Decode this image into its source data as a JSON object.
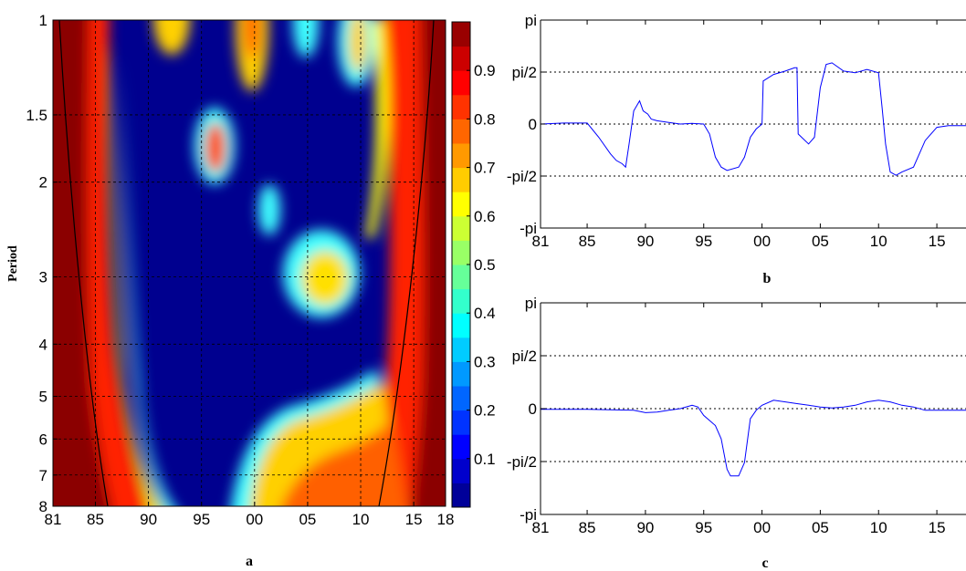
{
  "chart_data": [
    {
      "panel": "a",
      "type": "heatmap",
      "caption": "a",
      "ylabel": "Period",
      "x_ticks": [
        "81",
        "85",
        "90",
        "95",
        "00",
        "05",
        "10",
        "15",
        "18"
      ],
      "x_tick_years": [
        1981,
        1985,
        1990,
        1995,
        2000,
        2005,
        2010,
        2015,
        2018
      ],
      "xlim": [
        1981,
        2018
      ],
      "y_ticks": [
        "1",
        "1.5",
        "2",
        "3",
        "4",
        "5",
        "6",
        "7",
        "8"
      ],
      "y_tick_values": [
        1,
        1.5,
        2,
        3,
        4,
        5,
        6,
        7,
        8
      ],
      "ylim": [
        1,
        8
      ],
      "y_scale": "log2",
      "grid": true,
      "colorbar": {
        "ticks": [
          "0.1",
          "0.2",
          "0.3",
          "0.4",
          "0.5",
          "0.6",
          "0.7",
          "0.8",
          "0.9"
        ],
        "tick_values": [
          0.1,
          0.2,
          0.3,
          0.4,
          0.5,
          0.6,
          0.7,
          0.8,
          0.9
        ],
        "range": [
          0,
          1
        ],
        "colormap": "jet"
      },
      "coherence_regions": [
        {
          "label": "low coherence core",
          "x": [
            1990,
            2013
          ],
          "period": [
            1.05,
            7.9
          ],
          "level": 0.05
        },
        {
          "label": "high coherence left edge",
          "x": [
            1981,
            1989
          ],
          "period": [
            1,
            8
          ],
          "level": 0.92
        },
        {
          "label": "high coherence right edge",
          "x": [
            2014,
            2018
          ],
          "period": [
            1,
            8
          ],
          "level": 0.88
        },
        {
          "label": "moderate patch",
          "x": [
            2003,
            2010
          ],
          "period": [
            2.6,
            3.7
          ],
          "level": 0.6
        },
        {
          "label": "high coherence short period",
          "x": [
            1996,
            1998.5
          ],
          "period": [
            1.4,
            2.1
          ],
          "level": 0.8
        },
        {
          "label": "high coherence long period, 2000s",
          "x": [
            2001,
            2013
          ],
          "period": [
            5,
            8
          ],
          "level": 0.7
        }
      ]
    },
    {
      "panel": "b",
      "type": "line",
      "caption": "b",
      "x_ticks": [
        "81",
        "85",
        "90",
        "95",
        "00",
        "05",
        "10",
        "15"
      ],
      "x_tick_years": [
        1981,
        1985,
        1990,
        1995,
        2000,
        2005,
        2010,
        2015
      ],
      "xlim": [
        1981,
        2017.5
      ],
      "y_ticks": [
        "pi",
        "pi/2",
        "0",
        "-pi/2",
        "-pi"
      ],
      "y_tick_values": [
        3.1416,
        1.5708,
        0,
        -1.5708,
        -3.1416
      ],
      "ylim": [
        -3.1416,
        3.1416
      ],
      "grid": "dotted horizontal",
      "color": "#0000ff",
      "x": [
        1981,
        1983,
        1985,
        1986,
        1987,
        1987.5,
        1988,
        1988.3,
        1988.6,
        1989,
        1989.5,
        1989.8,
        1990.2,
        1990.5,
        1991,
        1992,
        1993,
        1994,
        1995,
        1995.5,
        1996,
        1996.5,
        1997,
        1998,
        1998.5,
        1999,
        1999.5,
        2000,
        2000.1,
        2001,
        2002,
        2002.8,
        2003,
        2003.1,
        2004,
        2004.5,
        2005,
        2005.5,
        2006,
        2007,
        2008,
        2009,
        2010,
        2010.3,
        2010.6,
        2011,
        2011.5,
        2012,
        2013,
        2014,
        2015,
        2016,
        2017.5
      ],
      "y": [
        0,
        0.03,
        0.03,
        -0.4,
        -0.9,
        -1.1,
        -1.2,
        -1.3,
        -0.6,
        0.4,
        0.7,
        0.4,
        0.3,
        0.15,
        0.1,
        0.05,
        0,
        0.02,
        0,
        -0.3,
        -1.0,
        -1.3,
        -1.4,
        -1.3,
        -1.0,
        -0.4,
        -0.15,
        0,
        1.3,
        1.5,
        1.6,
        1.7,
        1.7,
        -0.3,
        -0.6,
        -0.4,
        1.1,
        1.8,
        1.85,
        1.6,
        1.55,
        1.65,
        1.55,
        0.5,
        -0.6,
        -1.45,
        -1.55,
        -1.45,
        -1.3,
        -0.5,
        -0.1,
        -0.05,
        -0.05
      ]
    },
    {
      "panel": "c",
      "type": "line",
      "caption": "c",
      "x_ticks": [
        "81",
        "85",
        "90",
        "95",
        "00",
        "05",
        "10",
        "15"
      ],
      "x_tick_years": [
        1981,
        1985,
        1990,
        1995,
        2000,
        2005,
        2010,
        2015
      ],
      "xlim": [
        1981,
        2017.5
      ],
      "y_ticks": [
        "pi",
        "pi/2",
        "0",
        "-pi/2",
        "-pi"
      ],
      "y_tick_values": [
        3.1416,
        1.5708,
        0,
        -1.5708,
        -3.1416
      ],
      "ylim": [
        -3.1416,
        3.1416
      ],
      "grid": "dotted horizontal",
      "color": "#0000ff",
      "x": [
        1981,
        1985,
        1989,
        1990,
        1991,
        1992,
        1993,
        1994,
        1994.5,
        1995,
        1996,
        1996.5,
        1997,
        1997.3,
        1998,
        1998.5,
        1999,
        1999.5,
        2000,
        2001,
        2002,
        2003,
        2004,
        2005,
        2006,
        2007,
        2008,
        2009,
        2010,
        2011,
        2012,
        2013,
        2014,
        2015,
        2016,
        2017.5
      ],
      "y": [
        -0.02,
        -0.02,
        -0.05,
        -0.12,
        -0.1,
        -0.05,
        0,
        0.1,
        0.05,
        -0.2,
        -0.5,
        -0.9,
        -1.8,
        -2.0,
        -2.0,
        -1.6,
        -0.3,
        -0.05,
        0.1,
        0.25,
        0.2,
        0.15,
        0.1,
        0.05,
        0.02,
        0.05,
        0.1,
        0.2,
        0.25,
        0.2,
        0.1,
        0.05,
        -0.05,
        -0.05,
        -0.05,
        -0.05
      ]
    }
  ]
}
